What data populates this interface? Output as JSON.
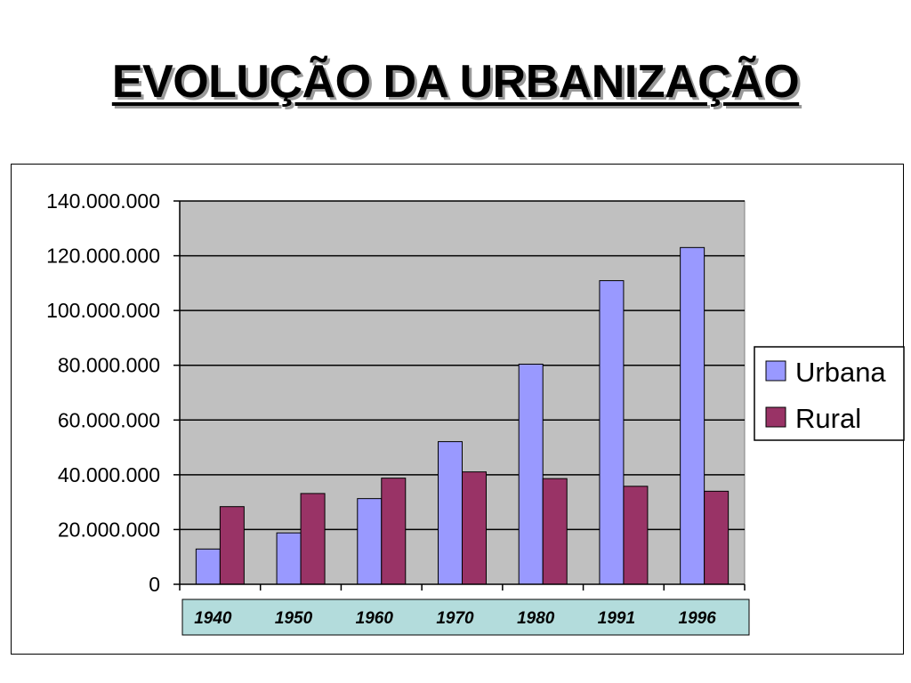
{
  "title": "EVOLUÇÃO DA URBANIZAÇÃO",
  "colors": {
    "urbana": "#9999ff",
    "rural": "#993366",
    "plot_bg": "#c0c0c0",
    "xaxis_band": "#b3dcdc"
  },
  "chart_data": {
    "type": "bar",
    "title": "",
    "xlabel": "",
    "ylabel": "",
    "categories": [
      "1940",
      "1950",
      "1960",
      "1970",
      "1980",
      "1991",
      "1996"
    ],
    "series": [
      {
        "name": "Urbana",
        "values": [
          12880000,
          18780000,
          31300000,
          52100000,
          80400000,
          110900000,
          123000000
        ]
      },
      {
        "name": "Rural",
        "values": [
          28360000,
          33160000,
          38770000,
          41050000,
          38600000,
          35800000,
          33990000
        ]
      }
    ],
    "ylim": [
      0,
      140000000
    ],
    "yticks": [
      0,
      20000000,
      40000000,
      60000000,
      80000000,
      100000000,
      120000000,
      140000000
    ],
    "ytick_labels": [
      "0",
      "20.000.000",
      "40.000.000",
      "60.000.000",
      "80.000.000",
      "100.000.000",
      "120.000.000",
      "140.000.000"
    ],
    "grid": true,
    "legend_position": "right"
  }
}
